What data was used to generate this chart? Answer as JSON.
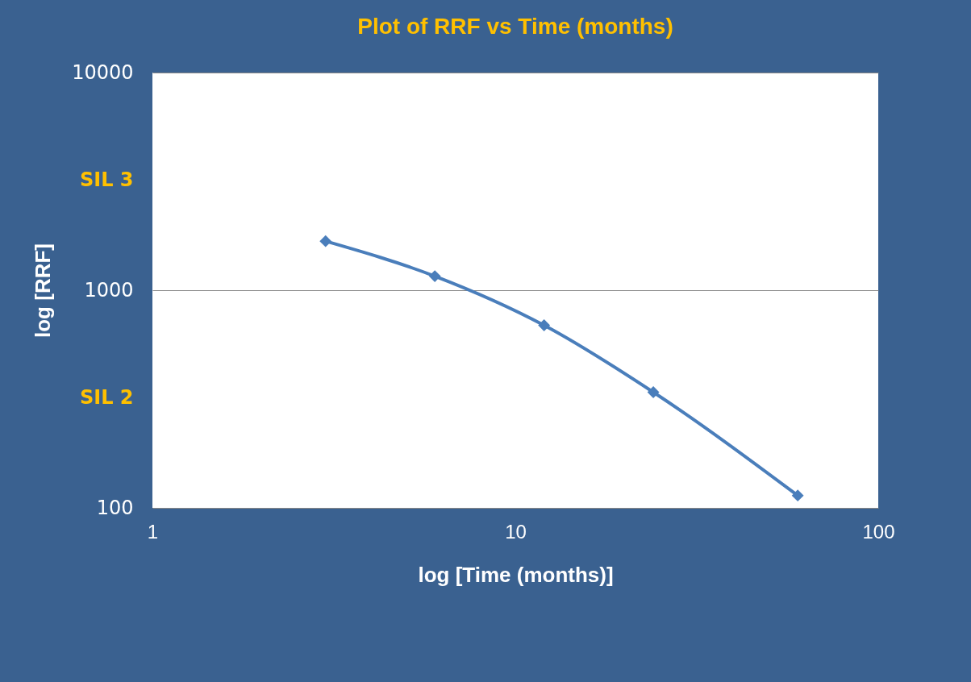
{
  "chart_data": {
    "type": "line",
    "title": "Plot of RRF vs Time (months)",
    "xlabel": "log [Time (months)]",
    "ylabel": "log [RRF]",
    "x": [
      3,
      6,
      12,
      24,
      60
    ],
    "series": [
      {
        "color": "#4a7ebb",
        "values": [
          1680,
          1160,
          690,
          340,
          114
        ]
      }
    ],
    "log": "xy",
    "xlim": [
      1,
      100
    ],
    "xticks": [
      1,
      10,
      100
    ],
    "ylim": [
      100,
      10000
    ],
    "yticks": [
      100,
      {
        "value": 320,
        "label": "SIL 2"
      },
      1000,
      {
        "value": 3200,
        "label": "SIL 3"
      },
      10000
    ],
    "grid": "y",
    "marker": "diamond",
    "line_style": "solid"
  }
}
